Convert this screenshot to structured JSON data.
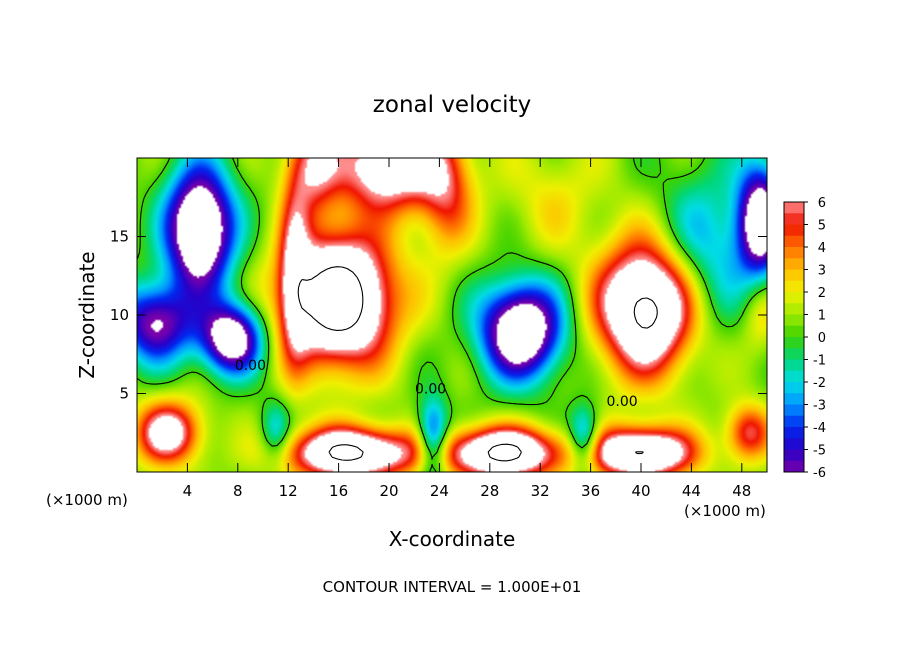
{
  "chart_data": {
    "type": "heatmap",
    "title": "zonal velocity",
    "xlabel": "X-coordinate",
    "ylabel": "Z-coordinate",
    "x_unit_label": "(×1000 m)",
    "y_unit_label": "(×1000 m)",
    "xlim": [
      0,
      50
    ],
    "ylim": [
      0,
      20
    ],
    "x_ticks": [
      "4",
      "8",
      "12",
      "16",
      "20",
      "24",
      "28",
      "32",
      "36",
      "40",
      "44",
      "48"
    ],
    "y_ticks": [
      "5",
      "10",
      "15"
    ],
    "colorbar": {
      "ticks": [
        "6",
        "5",
        "4",
        "3",
        "2",
        "1",
        "0",
        "-1",
        "-2",
        "-3",
        "-4",
        "-5",
        "-6"
      ],
      "min": -6,
      "max": 6,
      "out_of_range_color": "#ffffff"
    },
    "contour_labels": [
      {
        "text": "0.00",
        "x": 9,
        "z": 6.5
      },
      {
        "text": "0.00",
        "x": 23.3,
        "z": 5
      },
      {
        "text": "0.00",
        "x": 38.5,
        "z": 4.2
      }
    ],
    "grid": false,
    "legend": "colorbar-right",
    "footnote": "CONTOUR INTERVAL = 1.000E+01",
    "features": [
      {
        "x": 5.0,
        "z": 15.5,
        "a": 2.6,
        "c": 3.8,
        "amp": -11
      },
      {
        "x": 1.5,
        "z": 9.5,
        "a": 3.0,
        "c": 2.5,
        "amp": -7
      },
      {
        "x": 7.5,
        "z": 8.5,
        "a": 2.4,
        "c": 2.2,
        "amp": -9
      },
      {
        "x": 16.0,
        "z": 11.0,
        "a": 4.2,
        "c": 4.0,
        "amp": 12
      },
      {
        "x": 20.0,
        "z": 19.5,
        "a": 4.0,
        "c": 2.8,
        "amp": 8
      },
      {
        "x": 14.0,
        "z": 19.5,
        "a": 2.0,
        "c": 3.0,
        "amp": 5
      },
      {
        "x": 24.5,
        "z": 18.0,
        "a": 2.2,
        "c": 4.0,
        "amp": 4
      },
      {
        "x": 30.5,
        "z": 9.0,
        "a": 3.2,
        "c": 3.0,
        "amp": -10
      },
      {
        "x": 40.5,
        "z": 10.5,
        "a": 3.8,
        "c": 4.0,
        "amp": 11
      },
      {
        "x": 33.0,
        "z": 17.5,
        "a": 4.0,
        "c": 3.5,
        "amp": 1.5
      },
      {
        "x": 45.0,
        "z": 14.0,
        "a": 3.8,
        "c": 5.0,
        "amp": -3.5
      },
      {
        "x": 49.5,
        "z": 16.0,
        "a": 1.8,
        "c": 3.5,
        "amp": -9
      },
      {
        "x": 49.5,
        "z": 10.0,
        "a": 1.5,
        "c": 2.5,
        "amp": 2
      },
      {
        "x": 17.0,
        "z": 1.2,
        "a": 5.0,
        "c": 1.6,
        "amp": 10
      },
      {
        "x": 29.0,
        "z": 1.2,
        "a": 4.5,
        "c": 1.6,
        "amp": 10
      },
      {
        "x": 40.0,
        "z": 1.2,
        "a": 4.0,
        "c": 1.6,
        "amp": 10
      },
      {
        "x": 2.5,
        "z": 2.5,
        "a": 2.6,
        "c": 2.0,
        "amp": 7
      },
      {
        "x": 48.5,
        "z": 2.5,
        "a": 1.8,
        "c": 1.8,
        "amp": 5
      },
      {
        "x": 23.5,
        "z": 2.0,
        "a": 1.2,
        "c": 2.5,
        "amp": -6
      },
      {
        "x": 35.5,
        "z": 2.0,
        "a": 1.2,
        "c": 2.0,
        "amp": -5
      },
      {
        "x": 11.0,
        "z": 2.5,
        "a": 1.2,
        "c": 2.0,
        "amp": -3
      },
      {
        "x": 12.5,
        "z": 13.0,
        "a": 1.2,
        "c": 6.0,
        "amp": 4
      }
    ]
  }
}
